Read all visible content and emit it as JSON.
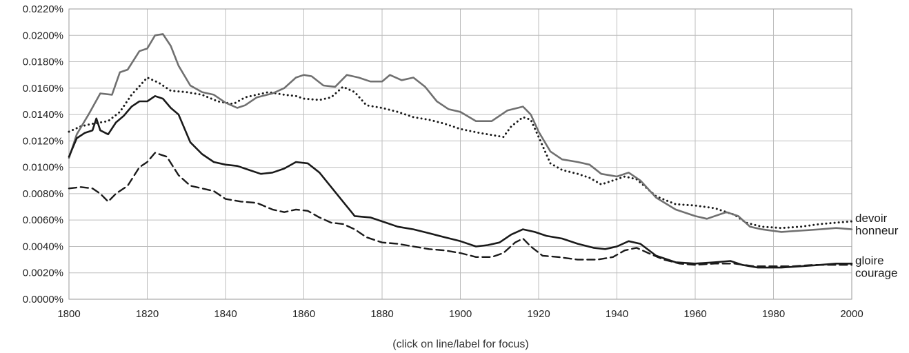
{
  "chart_data": {
    "type": "line",
    "title": "",
    "xlabel": "",
    "ylabel": "",
    "x_range": [
      1800,
      2000
    ],
    "y_range": [
      0,
      0.022
    ],
    "grid": true,
    "legend": "labels at right end of lines",
    "x_ticks": [
      "1800",
      "1820",
      "1840",
      "1860",
      "1880",
      "1900",
      "1920",
      "1940",
      "1960",
      "1980",
      "2000"
    ],
    "x_tick_values": [
      1800,
      1820,
      1840,
      1860,
      1880,
      1900,
      1920,
      1940,
      1960,
      1980,
      2000
    ],
    "y_ticks": [
      "0.0000%",
      "0.0020%",
      "0.0040%",
      "0.0060%",
      "0.0080%",
      "0.0100%",
      "0.0120%",
      "0.0140%",
      "0.0160%",
      "0.0180%",
      "0.0200%",
      "0.0220%"
    ],
    "y_tick_values": [
      0,
      0.002,
      0.004,
      0.006,
      0.008,
      0.01,
      0.012,
      0.014,
      0.016,
      0.018,
      0.02,
      0.022
    ],
    "annotation": "(click on line/label for focus)",
    "series": [
      {
        "name": "devoir",
        "color": "#1a1a1a",
        "style": "dotted",
        "points": [
          [
            1800,
            0.0127
          ],
          [
            1803,
            0.0131
          ],
          [
            1806,
            0.0133
          ],
          [
            1810,
            0.0135
          ],
          [
            1813,
            0.0142
          ],
          [
            1816,
            0.0155
          ],
          [
            1820,
            0.0168
          ],
          [
            1823,
            0.0164
          ],
          [
            1826,
            0.0158
          ],
          [
            1830,
            0.0157
          ],
          [
            1834,
            0.0155
          ],
          [
            1838,
            0.015
          ],
          [
            1842,
            0.0148
          ],
          [
            1845,
            0.0153
          ],
          [
            1848,
            0.0155
          ],
          [
            1851,
            0.0157
          ],
          [
            1855,
            0.0155
          ],
          [
            1858,
            0.0154
          ],
          [
            1860,
            0.0152
          ],
          [
            1864,
            0.0151
          ],
          [
            1867,
            0.0153
          ],
          [
            1870,
            0.0161
          ],
          [
            1873,
            0.0157
          ],
          [
            1876,
            0.0147
          ],
          [
            1880,
            0.0145
          ],
          [
            1884,
            0.0142
          ],
          [
            1888,
            0.0138
          ],
          [
            1892,
            0.0136
          ],
          [
            1896,
            0.0133
          ],
          [
            1900,
            0.0129
          ],
          [
            1905,
            0.0126
          ],
          [
            1911,
            0.0123
          ],
          [
            1913,
            0.0131
          ],
          [
            1916,
            0.0138
          ],
          [
            1918,
            0.0136
          ],
          [
            1920,
            0.0123
          ],
          [
            1923,
            0.0103
          ],
          [
            1926,
            0.0098
          ],
          [
            1930,
            0.0095
          ],
          [
            1933,
            0.0092
          ],
          [
            1936,
            0.0087
          ],
          [
            1939,
            0.009
          ],
          [
            1942,
            0.0093
          ],
          [
            1945,
            0.0091
          ],
          [
            1950,
            0.0078
          ],
          [
            1955,
            0.0072
          ],
          [
            1960,
            0.0071
          ],
          [
            1965,
            0.0069
          ],
          [
            1970,
            0.0064
          ],
          [
            1973,
            0.0058
          ],
          [
            1977,
            0.0055
          ],
          [
            1982,
            0.0054
          ],
          [
            1987,
            0.0055
          ],
          [
            1992,
            0.0057
          ],
          [
            1996,
            0.0058
          ],
          [
            2000,
            0.0059
          ]
        ]
      },
      {
        "name": "honneur",
        "color": "#707070",
        "style": "solid",
        "points": [
          [
            1800,
            0.0107
          ],
          [
            1802,
            0.0125
          ],
          [
            1805,
            0.014
          ],
          [
            1808,
            0.0156
          ],
          [
            1811,
            0.0155
          ],
          [
            1813,
            0.0172
          ],
          [
            1815,
            0.0174
          ],
          [
            1818,
            0.0188
          ],
          [
            1820,
            0.019
          ],
          [
            1822,
            0.02
          ],
          [
            1824,
            0.0201
          ],
          [
            1826,
            0.0192
          ],
          [
            1828,
            0.0177
          ],
          [
            1831,
            0.0162
          ],
          [
            1834,
            0.0157
          ],
          [
            1837,
            0.0155
          ],
          [
            1840,
            0.0149
          ],
          [
            1843,
            0.0145
          ],
          [
            1845,
            0.0147
          ],
          [
            1848,
            0.0153
          ],
          [
            1852,
            0.0156
          ],
          [
            1855,
            0.016
          ],
          [
            1858,
            0.0168
          ],
          [
            1860,
            0.017
          ],
          [
            1862,
            0.0169
          ],
          [
            1865,
            0.0162
          ],
          [
            1868,
            0.0161
          ],
          [
            1871,
            0.017
          ],
          [
            1874,
            0.0168
          ],
          [
            1877,
            0.0165
          ],
          [
            1880,
            0.0165
          ],
          [
            1882,
            0.017
          ],
          [
            1885,
            0.0166
          ],
          [
            1888,
            0.0168
          ],
          [
            1891,
            0.0161
          ],
          [
            1894,
            0.015
          ],
          [
            1897,
            0.0144
          ],
          [
            1900,
            0.0142
          ],
          [
            1904,
            0.0135
          ],
          [
            1908,
            0.0135
          ],
          [
            1912,
            0.0143
          ],
          [
            1916,
            0.0146
          ],
          [
            1918,
            0.014
          ],
          [
            1920,
            0.0127
          ],
          [
            1923,
            0.0112
          ],
          [
            1926,
            0.0106
          ],
          [
            1930,
            0.0104
          ],
          [
            1933,
            0.0102
          ],
          [
            1936,
            0.0095
          ],
          [
            1940,
            0.0093
          ],
          [
            1943,
            0.0096
          ],
          [
            1946,
            0.009
          ],
          [
            1950,
            0.0077
          ],
          [
            1955,
            0.0068
          ],
          [
            1960,
            0.0063
          ],
          [
            1963,
            0.0061
          ],
          [
            1966,
            0.0064
          ],
          [
            1968,
            0.0066
          ],
          [
            1971,
            0.0063
          ],
          [
            1974,
            0.0055
          ],
          [
            1977,
            0.0053
          ],
          [
            1982,
            0.0051
          ],
          [
            1987,
            0.0052
          ],
          [
            1992,
            0.0053
          ],
          [
            1996,
            0.0054
          ],
          [
            2000,
            0.0053
          ]
        ]
      },
      {
        "name": "gloire",
        "color": "#1a1a1a",
        "style": "solid",
        "points": [
          [
            1800,
            0.0108
          ],
          [
            1802,
            0.0122
          ],
          [
            1804,
            0.0126
          ],
          [
            1806,
            0.0128
          ],
          [
            1807,
            0.0137
          ],
          [
            1808,
            0.0128
          ],
          [
            1810,
            0.0125
          ],
          [
            1812,
            0.0134
          ],
          [
            1814,
            0.0139
          ],
          [
            1816,
            0.0146
          ],
          [
            1818,
            0.015
          ],
          [
            1820,
            0.015
          ],
          [
            1822,
            0.0154
          ],
          [
            1824,
            0.0152
          ],
          [
            1826,
            0.0145
          ],
          [
            1828,
            0.014
          ],
          [
            1831,
            0.0119
          ],
          [
            1834,
            0.011
          ],
          [
            1837,
            0.0104
          ],
          [
            1840,
            0.0102
          ],
          [
            1843,
            0.0101
          ],
          [
            1846,
            0.0098
          ],
          [
            1849,
            0.0095
          ],
          [
            1852,
            0.0096
          ],
          [
            1855,
            0.0099
          ],
          [
            1858,
            0.0104
          ],
          [
            1861,
            0.0103
          ],
          [
            1864,
            0.0096
          ],
          [
            1867,
            0.0085
          ],
          [
            1870,
            0.0074
          ],
          [
            1873,
            0.0063
          ],
          [
            1877,
            0.0062
          ],
          [
            1881,
            0.0058
          ],
          [
            1884,
            0.0055
          ],
          [
            1888,
            0.0053
          ],
          [
            1892,
            0.005
          ],
          [
            1896,
            0.0047
          ],
          [
            1900,
            0.0044
          ],
          [
            1904,
            0.004
          ],
          [
            1907,
            0.0041
          ],
          [
            1910,
            0.0043
          ],
          [
            1913,
            0.0049
          ],
          [
            1916,
            0.0053
          ],
          [
            1919,
            0.0051
          ],
          [
            1922,
            0.0048
          ],
          [
            1926,
            0.0046
          ],
          [
            1930,
            0.0042
          ],
          [
            1934,
            0.0039
          ],
          [
            1937,
            0.0038
          ],
          [
            1940,
            0.004
          ],
          [
            1943,
            0.0044
          ],
          [
            1946,
            0.0042
          ],
          [
            1950,
            0.0033
          ],
          [
            1955,
            0.0028
          ],
          [
            1960,
            0.0027
          ],
          [
            1965,
            0.0028
          ],
          [
            1969,
            0.0029
          ],
          [
            1972,
            0.0026
          ],
          [
            1976,
            0.0024
          ],
          [
            1982,
            0.0024
          ],
          [
            1987,
            0.0025
          ],
          [
            1992,
            0.0026
          ],
          [
            1996,
            0.0027
          ],
          [
            2000,
            0.0027
          ]
        ]
      },
      {
        "name": "courage",
        "color": "#1a1a1a",
        "style": "dashed",
        "points": [
          [
            1800,
            0.0084
          ],
          [
            1803,
            0.0085
          ],
          [
            1806,
            0.0084
          ],
          [
            1808,
            0.008
          ],
          [
            1810,
            0.0074
          ],
          [
            1812,
            0.008
          ],
          [
            1815,
            0.0086
          ],
          [
            1818,
            0.01
          ],
          [
            1820,
            0.0104
          ],
          [
            1822,
            0.0111
          ],
          [
            1825,
            0.0108
          ],
          [
            1828,
            0.0094
          ],
          [
            1831,
            0.0086
          ],
          [
            1834,
            0.0084
          ],
          [
            1837,
            0.0082
          ],
          [
            1840,
            0.0076
          ],
          [
            1844,
            0.0074
          ],
          [
            1848,
            0.0073
          ],
          [
            1852,
            0.0068
          ],
          [
            1855,
            0.0066
          ],
          [
            1858,
            0.0068
          ],
          [
            1861,
            0.0067
          ],
          [
            1864,
            0.0062
          ],
          [
            1867,
            0.0058
          ],
          [
            1870,
            0.0057
          ],
          [
            1873,
            0.0053
          ],
          [
            1876,
            0.0047
          ],
          [
            1880,
            0.0043
          ],
          [
            1884,
            0.0042
          ],
          [
            1888,
            0.004
          ],
          [
            1892,
            0.0038
          ],
          [
            1896,
            0.0037
          ],
          [
            1900,
            0.0035
          ],
          [
            1904,
            0.0032
          ],
          [
            1908,
            0.0032
          ],
          [
            1911,
            0.0035
          ],
          [
            1914,
            0.0043
          ],
          [
            1916,
            0.0046
          ],
          [
            1918,
            0.004
          ],
          [
            1921,
            0.0033
          ],
          [
            1925,
            0.0032
          ],
          [
            1930,
            0.003
          ],
          [
            1935,
            0.003
          ],
          [
            1939,
            0.0032
          ],
          [
            1942,
            0.0037
          ],
          [
            1945,
            0.0039
          ],
          [
            1948,
            0.0035
          ],
          [
            1952,
            0.003
          ],
          [
            1956,
            0.0027
          ],
          [
            1960,
            0.0026
          ],
          [
            1965,
            0.0027
          ],
          [
            1970,
            0.0027
          ],
          [
            1975,
            0.0025
          ],
          [
            1980,
            0.0025
          ],
          [
            1985,
            0.0025
          ],
          [
            1990,
            0.0026
          ],
          [
            1995,
            0.0026
          ],
          [
            2000,
            0.0026
          ]
        ]
      }
    ]
  }
}
